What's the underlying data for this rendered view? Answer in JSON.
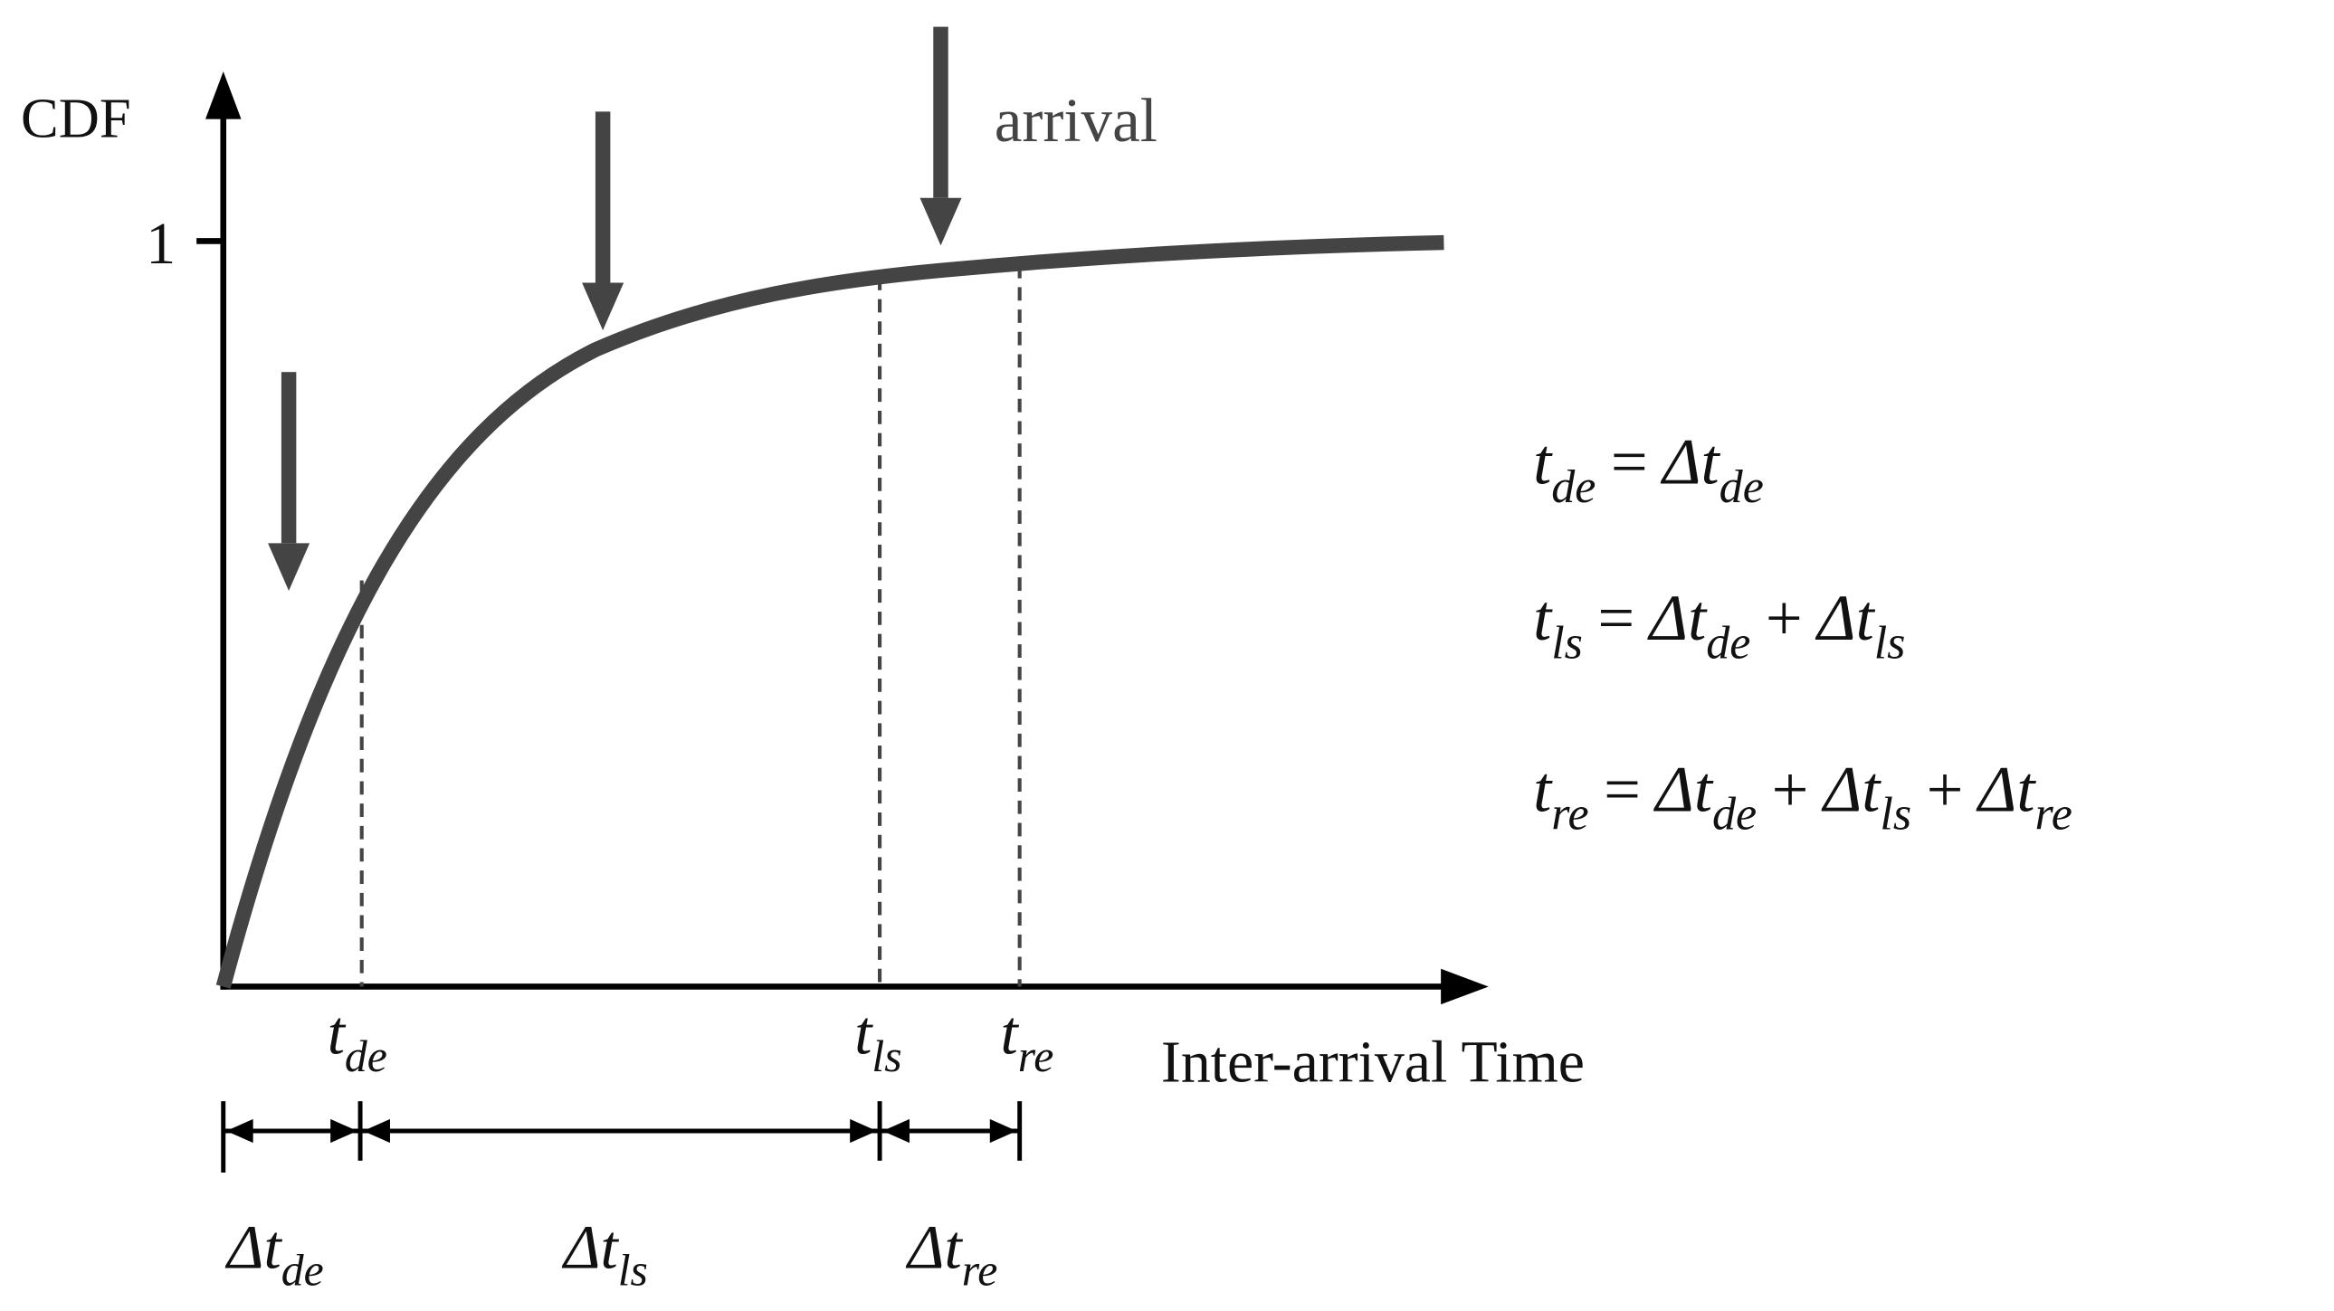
{
  "axis": {
    "y_label": "CDF",
    "y_tick": "1",
    "x_label": "Inter-arrival Time"
  },
  "annotation": "arrival",
  "time_labels": [
    {
      "base": "t",
      "sub": "de"
    },
    {
      "base": "t",
      "sub": "ls"
    },
    {
      "base": "t",
      "sub": "re"
    }
  ],
  "interval_labels": [
    {
      "base": "Δt",
      "sub": "de"
    },
    {
      "base": "Δt",
      "sub": "ls"
    },
    {
      "base": "Δt",
      "sub": "re"
    }
  ],
  "equations": [
    [
      {
        "base": "t",
        "sub": "de"
      },
      {
        "base": "="
      },
      {
        "base": "Δt",
        "sub": "de"
      }
    ],
    [
      {
        "base": "t",
        "sub": "ls"
      },
      {
        "base": "="
      },
      {
        "base": "Δt",
        "sub": "de"
      },
      {
        "base": "+"
      },
      {
        "base": "Δt",
        "sub": "ls"
      }
    ],
    [
      {
        "base": "t",
        "sub": "re"
      },
      {
        "base": "="
      },
      {
        "base": "Δt",
        "sub": "de"
      },
      {
        "base": "+"
      },
      {
        "base": "Δt",
        "sub": "ls"
      },
      {
        "base": "+"
      },
      {
        "base": "Δt",
        "sub": "re"
      }
    ]
  ]
}
